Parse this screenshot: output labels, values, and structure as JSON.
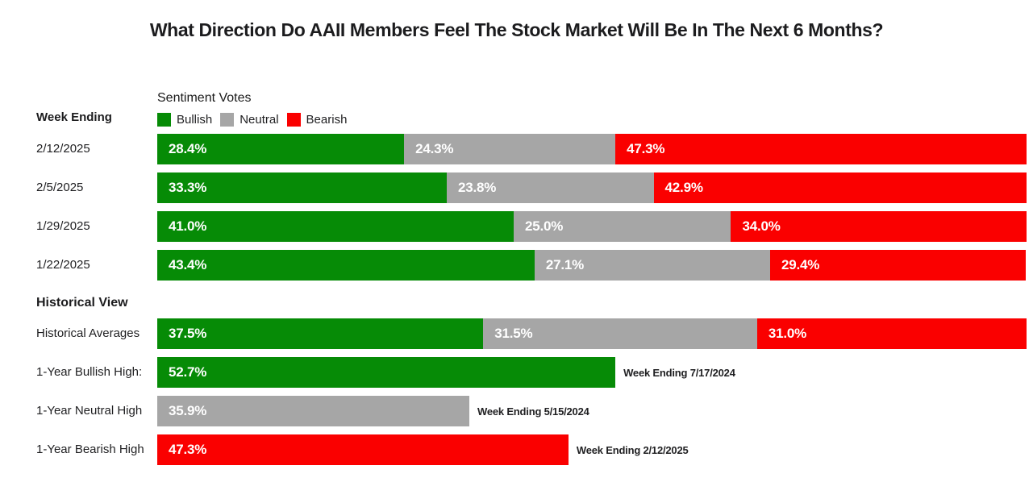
{
  "title": "What Direction Do AAII Members Feel The Stock Market Will Be In The Next 6 Months?",
  "colors": {
    "bullish": "#068B06",
    "neutral": "#A6A6A6",
    "bearish": "#FA0000"
  },
  "legend": {
    "title": "Sentiment Votes",
    "items": [
      {
        "label": "Bullish",
        "series": "bullish"
      },
      {
        "label": "Neutral",
        "series": "neutral"
      },
      {
        "label": "Bearish",
        "series": "bearish"
      }
    ]
  },
  "chart_data": {
    "type": "bar",
    "orientation": "horizontal",
    "stacked": true,
    "unit": "percent",
    "xlim": [
      0,
      100
    ],
    "grid": false,
    "legend_position": "top-left",
    "series_names": [
      "Bullish",
      "Neutral",
      "Bearish"
    ],
    "weekly": {
      "header": "Week Ending",
      "rows": [
        {
          "label": "2/12/2025",
          "values": {
            "bullish": 28.4,
            "neutral": 24.3,
            "bearish": 47.3
          }
        },
        {
          "label": "2/5/2025",
          "values": {
            "bullish": 33.3,
            "neutral": 23.8,
            "bearish": 42.9
          }
        },
        {
          "label": "1/29/2025",
          "values": {
            "bullish": 41.0,
            "neutral": 25.0,
            "bearish": 34.0
          }
        },
        {
          "label": "1/22/2025",
          "values": {
            "bullish": 43.4,
            "neutral": 27.1,
            "bearish": 29.4
          }
        }
      ]
    },
    "historical": {
      "header": "Historical View",
      "rows": [
        {
          "label": "Historical Averages",
          "values": {
            "bullish": 37.5,
            "neutral": 31.5,
            "bearish": 31.0
          }
        },
        {
          "label": "1-Year Bullish High:",
          "values": {
            "bullish": 52.7
          },
          "annotation": "Week Ending 7/17/2024"
        },
        {
          "label": "1-Year Neutral High",
          "values": {
            "neutral": 35.9
          },
          "annotation": "Week Ending 5/15/2024"
        },
        {
          "label": "1-Year Bearish High",
          "values": {
            "bearish": 47.3
          },
          "annotation": "Week Ending 2/12/2025"
        }
      ]
    }
  }
}
